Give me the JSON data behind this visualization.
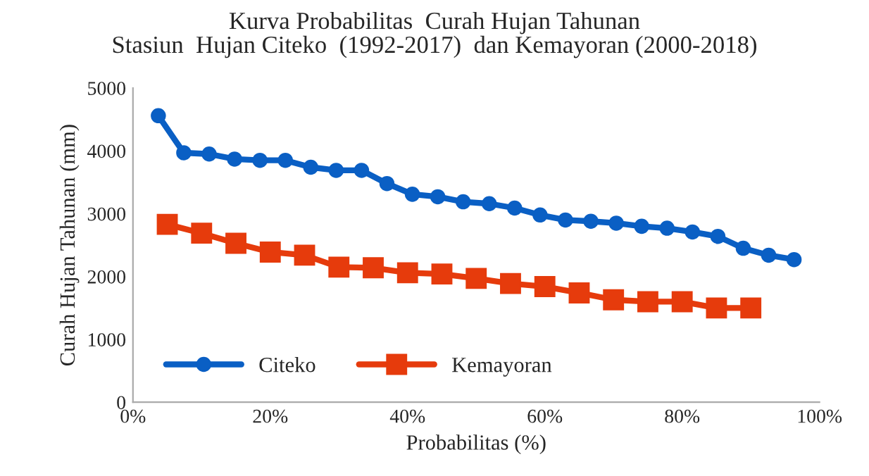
{
  "chart_data": {
    "type": "line",
    "title": "Kurva Probabilitas  Curah Hujan Tahunan\nStasiun  Hujan Citeko  (1992-2017)  dan Kemayoran (2000-2018)",
    "xlabel": "Probabilitas (%)",
    "ylabel": "Curah Hujan Tahunan (mm)",
    "xlim": [
      0,
      100
    ],
    "xticks": [
      {
        "value": 0,
        "label": "0%"
      },
      {
        "value": 20,
        "label": "20%"
      },
      {
        "value": 40,
        "label": "40%"
      },
      {
        "value": 60,
        "label": "60%"
      },
      {
        "value": 80,
        "label": "80%"
      },
      {
        "value": 100,
        "label": "100%"
      }
    ],
    "ylim": [
      0,
      5000
    ],
    "yticks": [
      0,
      1000,
      2000,
      3000,
      4000,
      5000
    ],
    "grid": false,
    "legend": "bottom left",
    "line_style": "solid",
    "series": [
      {
        "name": "Citeko",
        "color": "#0a5fc4",
        "marker": "circle",
        "x": [
          3.7,
          7.4,
          11.1,
          14.8,
          18.5,
          22.2,
          25.9,
          29.6,
          33.3,
          37.0,
          40.7,
          44.4,
          48.1,
          51.9,
          55.6,
          59.3,
          63.0,
          66.7,
          70.4,
          74.1,
          77.8,
          81.5,
          85.2,
          88.9,
          92.6,
          96.3
        ],
        "values": [
          4560,
          3970,
          3950,
          3870,
          3850,
          3850,
          3740,
          3690,
          3690,
          3480,
          3310,
          3270,
          3190,
          3160,
          3090,
          2980,
          2900,
          2880,
          2850,
          2800,
          2770,
          2710,
          2640,
          2450,
          2340,
          2270
        ]
      },
      {
        "name": "Kemayoran",
        "color": "#e63b0c",
        "marker": "square",
        "x": [
          5,
          10,
          15,
          20,
          25,
          30,
          35,
          40,
          45,
          50,
          55,
          60,
          65,
          70,
          75,
          80,
          85,
          90
        ],
        "values": [
          2830,
          2690,
          2530,
          2390,
          2340,
          2150,
          2140,
          2060,
          2040,
          1970,
          1890,
          1840,
          1740,
          1630,
          1600,
          1600,
          1500,
          1500
        ]
      }
    ]
  }
}
